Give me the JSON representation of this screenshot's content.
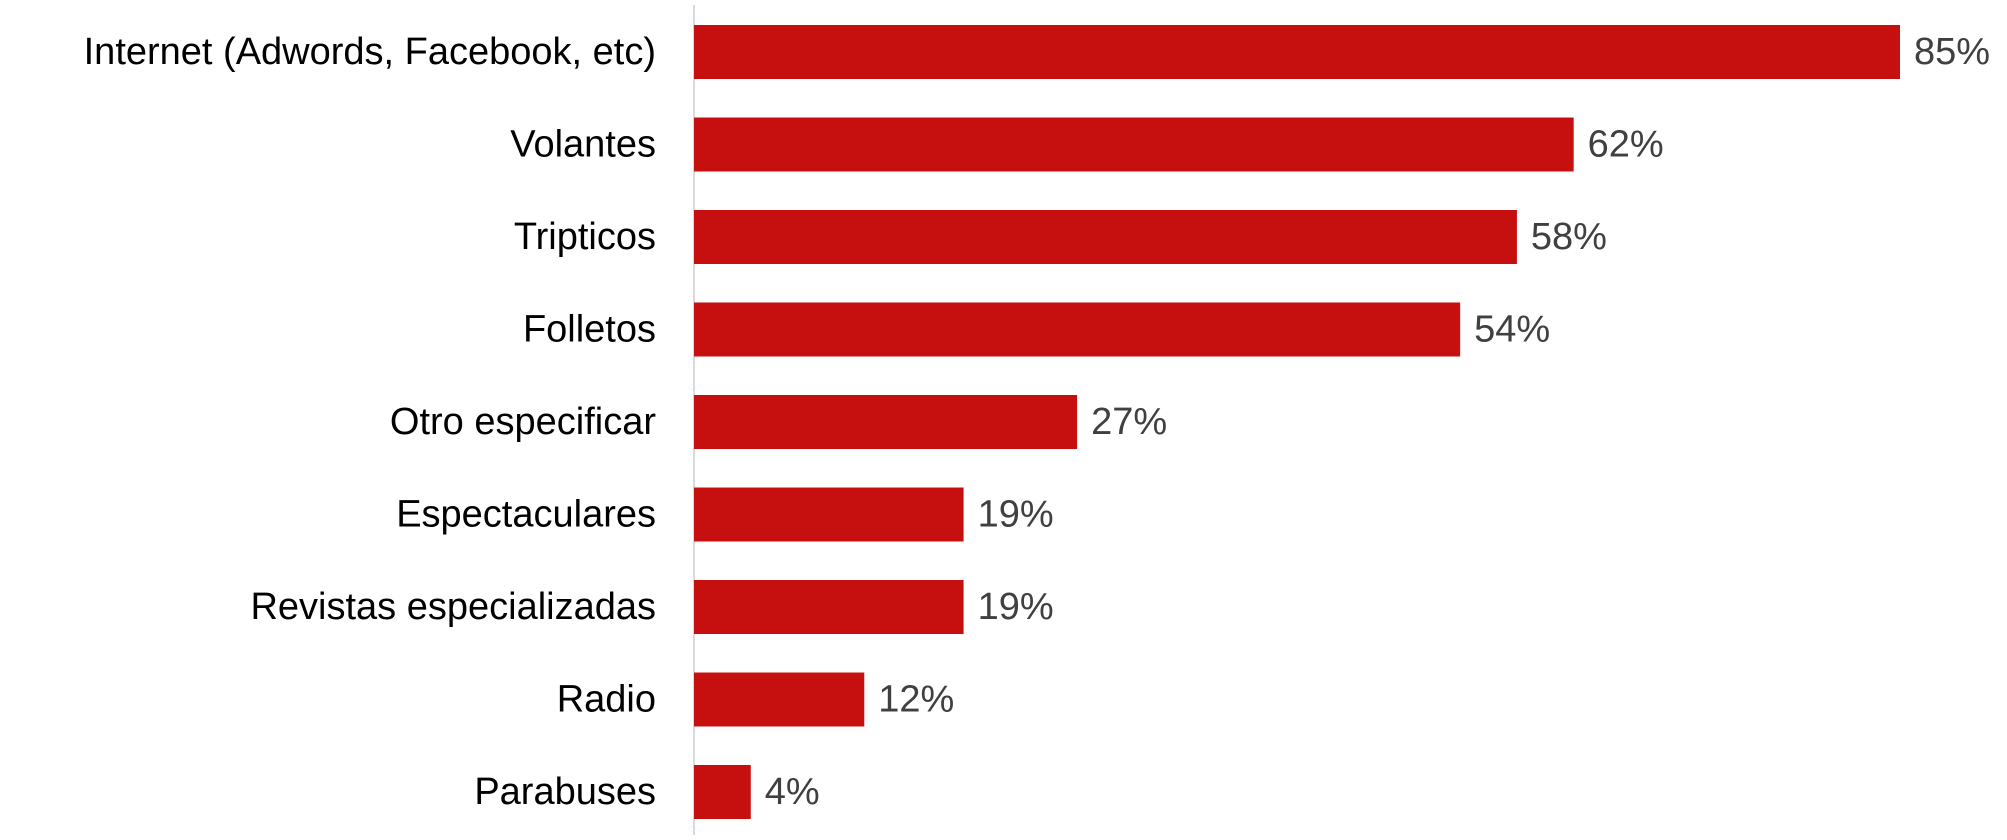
{
  "colors": {
    "bar": "#c61010",
    "category_label": "#000000",
    "value_label": "#404040",
    "axis_line": "#d9d9d9",
    "background": "#ffffff"
  },
  "chart_data": {
    "type": "bar",
    "orientation": "horizontal",
    "title": "",
    "xlabel": "",
    "ylabel": "",
    "categories": [
      "Internet (Adwords, Facebook, etc)",
      "Volantes",
      "Tripticos",
      "Folletos",
      "Otro especificar",
      "Espectaculares",
      "Revistas especializadas",
      "Radio",
      "Parabuses"
    ],
    "values": [
      85,
      62,
      58,
      54,
      27,
      19,
      19,
      12,
      4
    ],
    "value_labels": [
      "85%",
      "62%",
      "58%",
      "54%",
      "27%",
      "19%",
      "19%",
      "12%",
      "4%"
    ],
    "unit": "%",
    "xlim": [
      0,
      85
    ],
    "grid": false,
    "legend": "none"
  }
}
